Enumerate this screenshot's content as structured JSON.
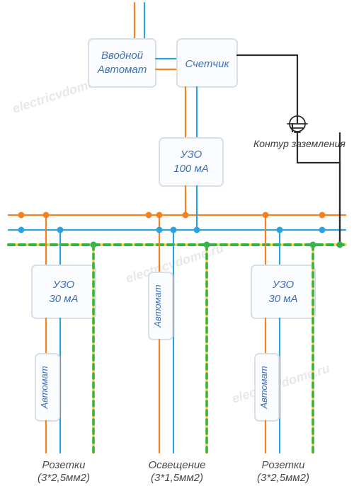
{
  "colors": {
    "phase": "#f58220",
    "neutral": "#2ca3dc",
    "ground_green": "#34b24a",
    "ground_yellow": "#ffd54a",
    "black": "#2b2b2b",
    "box_fill": "#fbfcfd",
    "box_stroke": "#d8dfe9",
    "label_blue": "#3f6fb5",
    "caption_gray": "#4a4a4a"
  },
  "boxes": {
    "main_breaker": {
      "line1": "Вводной",
      "line2": "Автомат"
    },
    "meter": {
      "line1": "Счетчик"
    },
    "rcd_main": {
      "line1": "УЗО",
      "line2": "100 мА"
    },
    "rcd_left": {
      "line1": "УЗО",
      "line2": "30 мА"
    },
    "rcd_right": {
      "line1": "УЗО",
      "line2": "30 мА"
    },
    "breaker_left": "Автомат",
    "breaker_center": "Автомат",
    "breaker_right": "Автомат"
  },
  "labels": {
    "ground": "Контур заземления",
    "outlets_left": {
      "line1": "Розетки",
      "line2": "(3*2,5мм2)"
    },
    "lighting": {
      "line1": "Освещение",
      "line2": "(3*1,5мм2)"
    },
    "outlets_right": {
      "line1": "Розетки",
      "line2": "(3*2,5мм2)"
    }
  },
  "watermark": "electricvdome.ru",
  "line_width": 2.2,
  "node_radius": 4.5
}
